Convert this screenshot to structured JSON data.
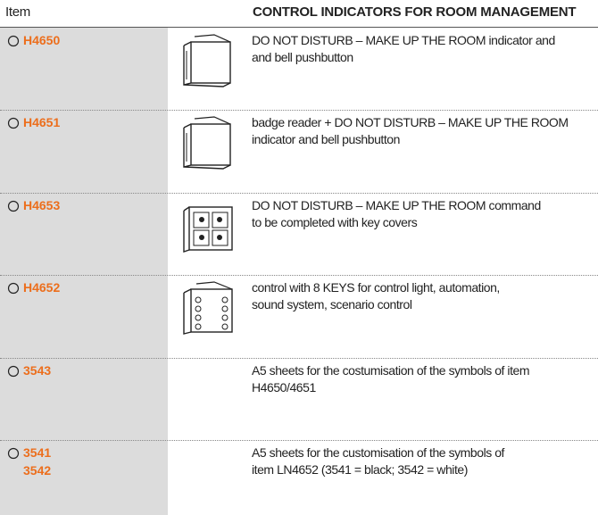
{
  "header": {
    "item": "Item",
    "title": "CONTROL INDICATORS FOR ROOM MANAGEMENT"
  },
  "rows": [
    {
      "codes": [
        "H4650"
      ],
      "lines": [
        "DO NOT DISTURB – MAKE UP THE ROOM indicator and",
        "and bell pushbutton"
      ]
    },
    {
      "codes": [
        "H4651"
      ],
      "lines": [
        "badge reader + DO NOT DISTURB – MAKE UP THE ROOM",
        "indicator and bell pushbutton"
      ]
    },
    {
      "codes": [
        "H4653"
      ],
      "lines": [
        "DO NOT DISTURB – MAKE UP THE ROOM command",
        "to be completed with key covers"
      ]
    },
    {
      "codes": [
        "H4652"
      ],
      "lines": [
        "control with 8 KEYS for control light, automation,",
        "sound system, scenario control"
      ]
    },
    {
      "codes": [
        "3543"
      ],
      "lines": [
        "A5 sheets for the costumisation of the symbols of item",
        "H4650/4651"
      ]
    },
    {
      "codes": [
        "3541",
        "3542"
      ],
      "lines": [
        "A5 sheets for the customisation of the symbols of",
        "item LN4652 (3541 = black; 3542 = white)"
      ]
    }
  ]
}
